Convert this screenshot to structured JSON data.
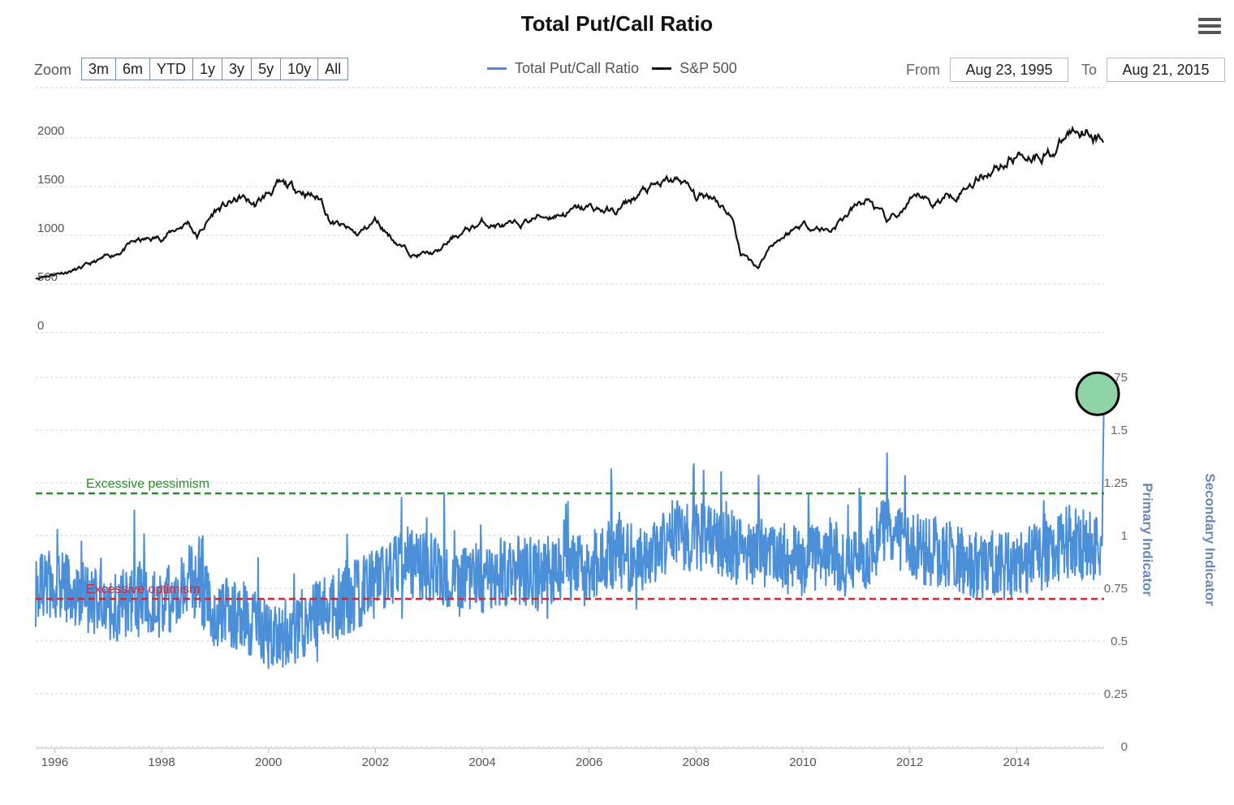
{
  "title": "Total Put/Call Ratio",
  "toolbar": {
    "zoom_label": "Zoom",
    "zoom_buttons": [
      "3m",
      "6m",
      "YTD",
      "1y",
      "3y",
      "5y",
      "10y",
      "All"
    ],
    "from_label": "From",
    "from_value": "Aug 23, 1995",
    "to_label": "To",
    "to_value": "Aug 21, 2015"
  },
  "colors": {
    "put_call": "#4a8fd8",
    "sp500": "#111111",
    "excessive_pessimism": "#2a8a2a",
    "excessive_optimism": "#e0202a",
    "highlight_fill": "#8fd4a6"
  },
  "chart_data": {
    "type": "line",
    "title": "Total Put/Call Ratio",
    "legend": [
      "Total Put/Call Ratio",
      "S&P 500"
    ],
    "legend_position": "top-center",
    "x_ticks": [
      "1996",
      "1998",
      "2000",
      "2002",
      "2004",
      "2006",
      "2008",
      "2010",
      "2012",
      "2014"
    ],
    "xlim": [
      "1995-08-23",
      "2015-08-21"
    ],
    "panels": [
      {
        "name": "S&P 500",
        "ylim": [
          0,
          2000
        ],
        "y_ticks": [
          "2000",
          "1500",
          "1000",
          "500",
          "0"
        ],
        "series": [
          {
            "name": "S&P 500",
            "points": [
              [
                "1995-08",
                560
              ],
              [
                "1996-01",
                610
              ],
              [
                "1996-07",
                660
              ],
              [
                "1997-01",
                770
              ],
              [
                "1997-07",
                930
              ],
              [
                "1997-10",
                950
              ],
              [
                "1998-01",
                980
              ],
              [
                "1998-07",
                1140
              ],
              [
                "1998-09",
                990
              ],
              [
                "1999-01",
                1250
              ],
              [
                "1999-07",
                1380
              ],
              [
                "1999-10",
                1300
              ],
              [
                "2000-01",
                1430
              ],
              [
                "2000-03",
                1500
              ],
              [
                "2000-09",
                1460
              ],
              [
                "2001-01",
                1360
              ],
              [
                "2001-03",
                1150
              ],
              [
                "2001-09",
                1000
              ],
              [
                "2002-01",
                1150
              ],
              [
                "2002-07",
                880
              ],
              [
                "2002-10",
                800
              ],
              [
                "2003-03",
                820
              ],
              [
                "2003-07",
                990
              ],
              [
                "2004-01",
                1130
              ],
              [
                "2004-08",
                1080
              ],
              [
                "2005-01",
                1180
              ],
              [
                "2005-07",
                1230
              ],
              [
                "2006-01",
                1280
              ],
              [
                "2006-07",
                1240
              ],
              [
                "2007-01",
                1440
              ],
              [
                "2007-07",
                1540
              ],
              [
                "2007-10",
                1560
              ],
              [
                "2008-01",
                1380
              ],
              [
                "2008-05",
                1420
              ],
              [
                "2008-09",
                1200
              ],
              [
                "2008-11",
                820
              ],
              [
                "2009-03",
                680
              ],
              [
                "2009-06",
                920
              ],
              [
                "2010-01",
                1120
              ],
              [
                "2010-07",
                1050
              ],
              [
                "2011-01",
                1290
              ],
              [
                "2011-04",
                1360
              ],
              [
                "2011-08",
                1120
              ],
              [
                "2012-01",
                1310
              ],
              [
                "2012-04",
                1400
              ],
              [
                "2012-06",
                1320
              ],
              [
                "2013-01",
                1490
              ],
              [
                "2013-07",
                1680
              ],
              [
                "2014-01",
                1830
              ],
              [
                "2014-10",
                1880
              ],
              [
                "2015-01",
                2050
              ],
              [
                "2015-05",
                2120
              ],
              [
                "2015-08",
                1970
              ]
            ]
          }
        ]
      },
      {
        "name": "Total Put/Call Ratio",
        "ylim": [
          0,
          1.75
        ],
        "y_ticks": [
          "1.75",
          "1.5",
          "1.25",
          "1",
          "0.75",
          "0.5",
          "0.25",
          "0"
        ],
        "axis_titles": [
          "Primary Indicator",
          "Secondary Indicator"
        ],
        "reference_lines": [
          {
            "label": "Excessive pessimism",
            "value": 1.2
          },
          {
            "label": "Excessive optimism",
            "value": 0.7
          }
        ],
        "highlight": {
          "date": "2015-08-21",
          "value": 1.68
        },
        "series": [
          {
            "name": "Total Put/Call Ratio",
            "points": [
              [
                "1995-08",
                0.73
              ],
              [
                "1996-01",
                0.78
              ],
              [
                "1996-07",
                0.72
              ],
              [
                "1997-01",
                0.66
              ],
              [
                "1997-07",
                0.68
              ],
              [
                "1997-10",
                0.7
              ],
              [
                "1998-01",
                0.66
              ],
              [
                "1998-07",
                0.8
              ],
              [
                "1999-01",
                0.64
              ],
              [
                "1999-07",
                0.62
              ],
              [
                "2000-01",
                0.52
              ],
              [
                "2000-07",
                0.55
              ],
              [
                "2001-01",
                0.64
              ],
              [
                "2001-07",
                0.7
              ],
              [
                "2002-01",
                0.78
              ],
              [
                "2002-07",
                0.88
              ],
              [
                "2003-01",
                0.85
              ],
              [
                "2003-07",
                0.78
              ],
              [
                "2004-01",
                0.8
              ],
              [
                "2004-07",
                0.84
              ],
              [
                "2005-01",
                0.82
              ],
              [
                "2005-07",
                0.85
              ],
              [
                "2006-01",
                0.86
              ],
              [
                "2006-07",
                0.92
              ],
              [
                "2007-01",
                0.88
              ],
              [
                "2007-07",
                1.0
              ],
              [
                "2008-01",
                1.0
              ],
              [
                "2008-07",
                0.96
              ],
              [
                "2009-01",
                0.94
              ],
              [
                "2009-07",
                0.9
              ],
              [
                "2010-01",
                0.88
              ],
              [
                "2010-07",
                0.92
              ],
              [
                "2011-01",
                0.85
              ],
              [
                "2011-08",
                1.05
              ],
              [
                "2012-01",
                0.95
              ],
              [
                "2012-07",
                0.92
              ],
              [
                "2013-01",
                0.88
              ],
              [
                "2013-07",
                0.86
              ],
              [
                "2014-01",
                0.86
              ],
              [
                "2014-07",
                0.9
              ],
              [
                "2015-01",
                0.98
              ],
              [
                "2015-07",
                0.95
              ],
              [
                "2015-08",
                1.68
              ]
            ]
          }
        ]
      }
    ]
  }
}
